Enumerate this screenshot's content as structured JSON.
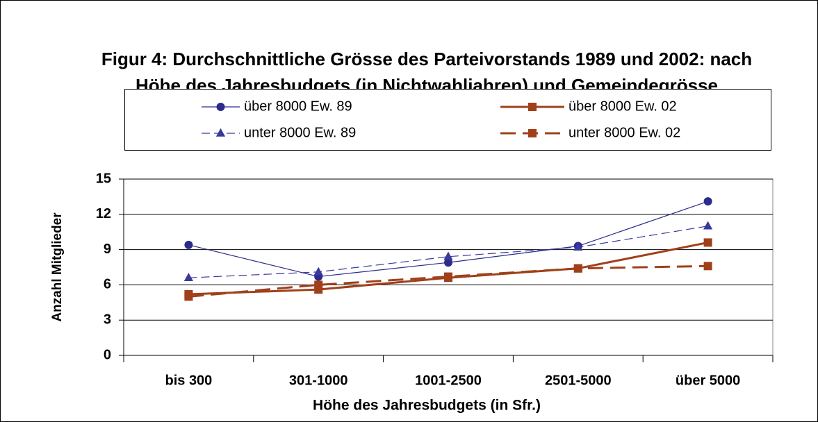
{
  "chart_data": {
    "type": "line",
    "title": [
      "Figur 4: Durchschnittliche Grösse des Parteivorstands 1989 und 2002: nach",
      "Höhe des Jahresbudgets (in Nichtwahljahren)  und Gemeindegrösse"
    ],
    "x_label": "Höhe des Jahresbudgets (in Sfr.)",
    "y_label": "Anzahl Mitglieder",
    "categories": [
      "bis 300",
      "301-1000",
      "1001-2500",
      "2501-5000",
      "über 5000"
    ],
    "series": [
      {
        "name": "über 8000 Ew. 89",
        "color": "#2b2b8c",
        "marker": "circle",
        "line_style": "solid",
        "line_width": 1.2,
        "values": [
          9.4,
          6.7,
          7.9,
          9.3,
          13.1
        ]
      },
      {
        "name": "über 8000 Ew. 02",
        "color": "#a0401a",
        "marker": "square",
        "line_style": "solid",
        "line_width": 3,
        "values": [
          5.2,
          5.6,
          6.6,
          7.4,
          9.6
        ]
      },
      {
        "name": "unter 8000 Ew. 89",
        "color": "#3a3a9c",
        "marker": "triangle",
        "line_style": "dashed",
        "line_width": 1.2,
        "values": [
          6.6,
          7.1,
          8.4,
          9.2,
          11.0
        ]
      },
      {
        "name": "unter 8000 Ew. 02",
        "color": "#a0401a",
        "marker": "square",
        "line_style": "dashed",
        "line_width": 3,
        "values": [
          5.0,
          6.0,
          6.7,
          7.4,
          7.6
        ]
      }
    ],
    "ylim": [
      0,
      15
    ],
    "yticks": [
      0,
      3,
      6,
      9,
      12,
      15
    ],
    "grid": true
  }
}
